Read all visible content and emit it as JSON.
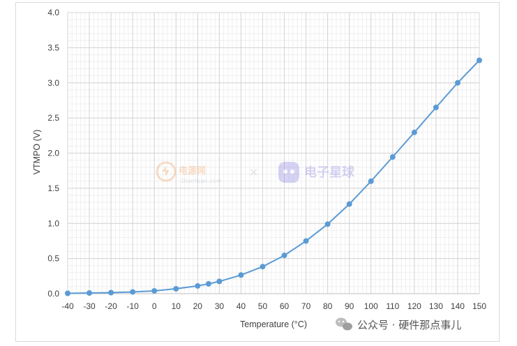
{
  "chart_data": {
    "type": "line",
    "title": "",
    "xlabel": "Temperature (°C)",
    "ylabel": "VTMPO (V)",
    "xlim": [
      -40,
      150
    ],
    "ylim": [
      0,
      4.0
    ],
    "x_ticks": [
      -40,
      -30,
      -20,
      -10,
      0,
      10,
      20,
      30,
      40,
      50,
      60,
      70,
      80,
      90,
      100,
      110,
      120,
      130,
      140,
      150
    ],
    "y_ticks": [
      "0.0",
      "0.5",
      "1.0",
      "1.5",
      "2.0",
      "2.5",
      "3.0",
      "3.5",
      "4.0"
    ],
    "grid": true,
    "minor_grid": true,
    "legend": "none",
    "color": "#5b9bd5",
    "series": [
      {
        "x": [
          -40,
          -30,
          -20,
          -10,
          0,
          10,
          20,
          25,
          30,
          40,
          50,
          60,
          70,
          80,
          90,
          100,
          110,
          120,
          130,
          140,
          150
        ],
        "y": [
          0.005,
          0.01,
          0.015,
          0.025,
          0.04,
          0.07,
          0.11,
          0.14,
          0.175,
          0.265,
          0.385,
          0.545,
          0.75,
          0.99,
          1.275,
          1.6,
          1.945,
          2.295,
          2.65,
          3.0,
          3.32
        ]
      }
    ]
  },
  "watermark": {
    "site_cn": "电源网",
    "site_en": "DianYuan.com",
    "separator": "×",
    "partner": "电子星球",
    "credit": "公众号 · 硬件那点事儿"
  }
}
